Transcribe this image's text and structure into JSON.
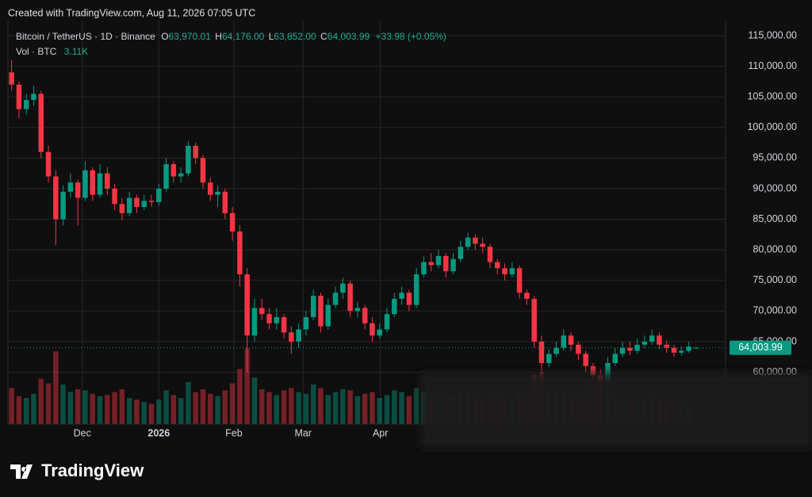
{
  "header": {
    "created": "Created with TradingView.com, Aug 11, 2026 07:05 UTC",
    "symbol": "Bitcoin / TetherUS · 1D · Binance",
    "ohlc_legend": [
      {
        "key": "O",
        "value": "63,970.01"
      },
      {
        "key": "H",
        "value": "64,176.00"
      },
      {
        "key": "L",
        "value": "63,852.00"
      },
      {
        "key": "C",
        "value": "64,003.99"
      }
    ],
    "change": "+33.98 (+0.05%)",
    "volume_label": "Vol · BTC",
    "volume_value": "3.11K"
  },
  "logo": "TradingView",
  "chart_data": {
    "type": "candlestick",
    "up_color": "#089981",
    "down_color": "#f23645",
    "grid": true,
    "open": [
      109000,
      107000,
      103000,
      104500,
      105500,
      96000,
      92000,
      85000,
      89500,
      91000,
      88500,
      93000,
      89000,
      92500,
      90000,
      87500,
      86000,
      88500,
      87000,
      88000,
      87800,
      90000,
      94000,
      92000,
      92500,
      97000,
      95000,
      91000,
      89000,
      89500,
      86000,
      83000,
      76000,
      66000,
      70500,
      69500,
      68000,
      69000,
      66500,
      65000,
      67000,
      69000,
      72500,
      67500,
      71000,
      73000,
      74500,
      70000,
      70500,
      68000,
      66000,
      67000,
      69500,
      72000,
      73000,
      71000,
      76000,
      78000,
      77500,
      79000,
      76500,
      78500,
      80500,
      82000,
      81000,
      80500,
      78000,
      77000,
      76000,
      77000,
      73000,
      72000,
      65000,
      61500,
      63000,
      64000,
      66000,
      64500,
      63000,
      61000,
      59500,
      58500,
      61500,
      63000,
      64000,
      63500,
      64500,
      65000,
      66000,
      64500,
      64000,
      63200,
      63500,
      63970.01
    ],
    "high": [
      111000,
      107500,
      105500,
      106800,
      106000,
      97000,
      93000,
      90500,
      92500,
      91500,
      94500,
      93500,
      94000,
      93500,
      90800,
      88500,
      89500,
      89000,
      89000,
      89000,
      90800,
      95000,
      94500,
      93500,
      97800,
      97500,
      95500,
      91800,
      90500,
      90000,
      87000,
      84000,
      77000,
      72000,
      72000,
      70500,
      70500,
      69500,
      67500,
      68000,
      70000,
      73500,
      73000,
      72000,
      74000,
      75500,
      75000,
      71500,
      71000,
      69000,
      68000,
      70500,
      73000,
      74000,
      73500,
      77000,
      79000,
      79500,
      80000,
      79500,
      79500,
      81500,
      82800,
      82500,
      82000,
      81000,
      78500,
      77800,
      78000,
      77500,
      73500,
      72500,
      66000,
      63800,
      65000,
      67000,
      66500,
      65000,
      63500,
      61500,
      60500,
      62500,
      64000,
      65000,
      65000,
      65500,
      66000,
      67000,
      66500,
      65200,
      64500,
      64200,
      65000,
      64176
    ],
    "low": [
      106000,
      101500,
      102000,
      103500,
      95000,
      91000,
      80800,
      84000,
      88500,
      84000,
      88000,
      88000,
      88500,
      89000,
      86500,
      84800,
      85500,
      86000,
      86500,
      87000,
      87200,
      89500,
      91000,
      91000,
      92000,
      94000,
      90000,
      88000,
      87000,
      85000,
      81500,
      74000,
      60000,
      65000,
      68500,
      67000,
      67000,
      65500,
      63000,
      64000,
      66000,
      68500,
      66500,
      67000,
      70500,
      72000,
      69000,
      69000,
      67000,
      65000,
      65500,
      66500,
      69000,
      71000,
      70000,
      70500,
      75500,
      76500,
      77000,
      75500,
      76000,
      78000,
      80000,
      80000,
      79500,
      77000,
      76000,
      75000,
      75500,
      72000,
      71000,
      64000,
      60000,
      60800,
      62500,
      63500,
      63500,
      62000,
      60000,
      58500,
      57500,
      58000,
      61000,
      62500,
      62800,
      63000,
      64000,
      64500,
      63800,
      63200,
      62500,
      62800,
      63200,
      63852
    ],
    "close": [
      107000,
      103000,
      104500,
      105500,
      96000,
      92000,
      85000,
      89500,
      91000,
      88500,
      93000,
      89000,
      92500,
      90000,
      87500,
      86000,
      88500,
      87000,
      88000,
      87800,
      90000,
      94000,
      92000,
      92500,
      97000,
      95000,
      91000,
      89000,
      89500,
      86000,
      83000,
      76000,
      66000,
      70500,
      69500,
      68000,
      69000,
      66500,
      65000,
      67000,
      69000,
      72500,
      67500,
      71000,
      73000,
      74500,
      70000,
      70500,
      68000,
      66000,
      67000,
      69500,
      72000,
      73000,
      71000,
      76000,
      78000,
      77500,
      79000,
      76500,
      78500,
      80500,
      82000,
      81000,
      80500,
      78000,
      77000,
      76000,
      77000,
      73000,
      72000,
      65000,
      61500,
      63000,
      64000,
      66000,
      64500,
      63000,
      61000,
      59500,
      58500,
      61500,
      63000,
      64000,
      63500,
      64500,
      65000,
      66000,
      64500,
      64000,
      63200,
      63500,
      64200,
      64003.99
    ],
    "volume": [
      62000,
      48000,
      45000,
      52000,
      78000,
      70000,
      125000,
      68000,
      55000,
      60000,
      58000,
      52000,
      48000,
      50000,
      55000,
      60000,
      45000,
      42000,
      38000,
      35000,
      42000,
      58000,
      50000,
      45000,
      72000,
      55000,
      60000,
      52000,
      48000,
      58000,
      70000,
      95000,
      130000,
      80000,
      60000,
      55000,
      50000,
      58000,
      62000,
      55000,
      52000,
      68000,
      62000,
      50000,
      55000,
      60000,
      58000,
      48000,
      52000,
      55000,
      45000,
      50000,
      58000,
      55000,
      48000,
      62000,
      55000,
      45000,
      50000,
      52000,
      48000,
      55000,
      58000,
      50000,
      45000,
      52000,
      48000,
      45000,
      42000,
      55000,
      50000,
      85000,
      90000,
      60000,
      52000,
      55000,
      48000,
      50000,
      62000,
      68000,
      70000,
      58000,
      48000,
      45000,
      40000,
      42000,
      45000,
      50000,
      42000,
      38000,
      40000,
      36000,
      35000,
      3110
    ],
    "volume_lim": [
      0,
      150000
    ],
    "last_price_label": "64,003.99",
    "xlim": [
      -0.5,
      97
    ],
    "xticks": [
      {
        "value": 9.6,
        "label": "Dec"
      },
      {
        "value": 20,
        "label": "2026"
      },
      {
        "value": 30.2,
        "label": "Feb"
      },
      {
        "value": 39.6,
        "label": "Mar"
      },
      {
        "value": 50.1,
        "label": "Apr"
      }
    ],
    "ylim": [
      51530,
      117460
    ],
    "yticks": [
      {
        "value": 115000,
        "label": "115,000.00"
      },
      {
        "value": 110000,
        "label": "110,000.00"
      },
      {
        "value": 105000,
        "label": "105,000.00"
      },
      {
        "value": 100000,
        "label": "100,000.00"
      },
      {
        "value": 95000,
        "label": "95,000.00"
      },
      {
        "value": 90000,
        "label": "90,000.00"
      },
      {
        "value": 85000,
        "label": "85,000.00"
      },
      {
        "value": 80000,
        "label": "80,000.00"
      },
      {
        "value": 75000,
        "label": "75,000.00"
      },
      {
        "value": 70000,
        "label": "70,000.00"
      },
      {
        "value": 65000,
        "label": "65,000.00"
      },
      {
        "value": 60000,
        "label": "60,000.00"
      }
    ]
  }
}
